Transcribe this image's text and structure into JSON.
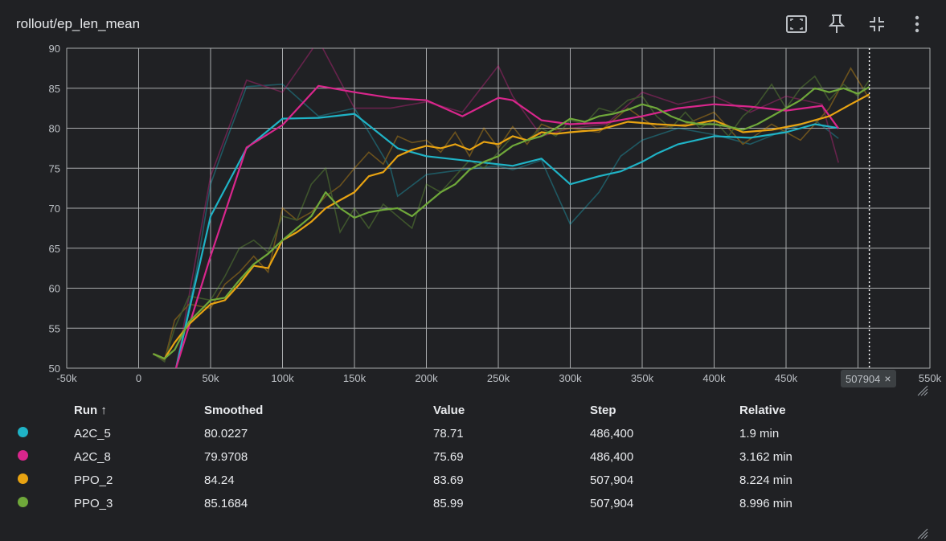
{
  "card": {
    "title": "rollout/ep_len_mean"
  },
  "toolbar": {
    "buttons": [
      {
        "name": "fit-domain-button",
        "icon": "fit-screen-icon"
      },
      {
        "name": "pin-button",
        "icon": "pin-icon"
      },
      {
        "name": "collapse-button",
        "icon": "collapse-icon"
      },
      {
        "name": "more-button",
        "icon": "more-vert-icon"
      }
    ]
  },
  "step_badge": {
    "label": "507904",
    "close": "×"
  },
  "table": {
    "headers": {
      "run": "Run ↑",
      "smoothed": "Smoothed",
      "value": "Value",
      "step": "Step",
      "relative": "Relative"
    },
    "rows": [
      {
        "run": "A2C_5",
        "smoothed": "80.0227",
        "value": "78.71",
        "step": "486,400",
        "relative": "1.9 min",
        "color": "#1fb3c6"
      },
      {
        "run": "A2C_8",
        "smoothed": "79.9708",
        "value": "75.69",
        "step": "486,400",
        "relative": "3.162 min",
        "color": "#d9268c"
      },
      {
        "run": "PPO_2",
        "smoothed": "84.24",
        "value": "83.69",
        "step": "507,904",
        "relative": "8.224 min",
        "color": "#e8a312"
      },
      {
        "run": "PPO_3",
        "smoothed": "85.1684",
        "value": "85.99",
        "step": "507,904",
        "relative": "8.996 min",
        "color": "#6fa83a"
      }
    ]
  },
  "chart_data": {
    "type": "line",
    "title": "rollout/ep_len_mean",
    "xlim": [
      -50000,
      550000
    ],
    "ylim": [
      50,
      90
    ],
    "x_ticks": [
      -50000,
      0,
      50000,
      100000,
      150000,
      200000,
      250000,
      300000,
      350000,
      400000,
      450000,
      500000,
      550000
    ],
    "x_tick_labels": [
      "-50k",
      "0",
      "50k",
      "100k",
      "150k",
      "200k",
      "250k",
      "300k",
      "350k",
      "400k",
      "450k",
      "500k",
      "550k"
    ],
    "y_ticks": [
      50,
      55,
      60,
      65,
      70,
      75,
      80,
      85,
      90
    ],
    "y_tick_labels": [
      "50",
      "55",
      "60",
      "65",
      "70",
      "75",
      "80",
      "85",
      "90"
    ],
    "grid": true,
    "cursor_step": 507904,
    "series": [
      {
        "name": "A2C_5",
        "color": "#1fb3c6",
        "smoothed": [
          [
            26000,
            50
          ],
          [
            50000,
            69
          ],
          [
            75000,
            77.5
          ],
          [
            100000,
            81.2
          ],
          [
            125000,
            81.3
          ],
          [
            150000,
            81.8
          ],
          [
            180000,
            77.5
          ],
          [
            200000,
            76.5
          ],
          [
            225000,
            76
          ],
          [
            250000,
            75.5
          ],
          [
            260000,
            75.3
          ],
          [
            280000,
            76.2
          ],
          [
            300000,
            73
          ],
          [
            320000,
            74
          ],
          [
            335000,
            74.6
          ],
          [
            350000,
            75.8
          ],
          [
            360000,
            76.8
          ],
          [
            375000,
            78
          ],
          [
            400000,
            79
          ],
          [
            425000,
            78.8
          ],
          [
            450000,
            79.5
          ],
          [
            470000,
            80.5
          ],
          [
            486400,
            80.0227
          ]
        ],
        "raw": [
          [
            26000,
            50
          ],
          [
            40000,
            62
          ],
          [
            50000,
            73
          ],
          [
            60000,
            78
          ],
          [
            75000,
            85.2
          ],
          [
            100000,
            85.5
          ],
          [
            125000,
            81.5
          ],
          [
            150000,
            82.5
          ],
          [
            175000,
            75
          ],
          [
            180000,
            71.5
          ],
          [
            200000,
            74.2
          ],
          [
            225000,
            74.8
          ],
          [
            250000,
            75.3
          ],
          [
            260000,
            74.8
          ],
          [
            280000,
            76
          ],
          [
            300000,
            68
          ],
          [
            320000,
            72
          ],
          [
            335000,
            76.5
          ],
          [
            350000,
            78.5
          ],
          [
            375000,
            80
          ],
          [
            400000,
            79.2
          ],
          [
            425000,
            78
          ],
          [
            450000,
            79.8
          ],
          [
            470000,
            81
          ],
          [
            486400,
            78.71
          ]
        ]
      },
      {
        "name": "A2C_8",
        "color": "#d9268c",
        "smoothed": [
          [
            26000,
            50
          ],
          [
            50000,
            64
          ],
          [
            75000,
            77.6
          ],
          [
            100000,
            80.4
          ],
          [
            125000,
            85.3
          ],
          [
            150000,
            84.5
          ],
          [
            175000,
            83.8
          ],
          [
            200000,
            83.5
          ],
          [
            225000,
            81.5
          ],
          [
            250000,
            83.8
          ],
          [
            260000,
            83.5
          ],
          [
            280000,
            81
          ],
          [
            300000,
            80.5
          ],
          [
            325000,
            80.7
          ],
          [
            350000,
            81.5
          ],
          [
            375000,
            82.5
          ],
          [
            400000,
            83
          ],
          [
            425000,
            82.7
          ],
          [
            450000,
            82.2
          ],
          [
            475000,
            82.8
          ],
          [
            486400,
            79.9708
          ]
        ],
        "raw": [
          [
            26000,
            50
          ],
          [
            50000,
            74
          ],
          [
            75000,
            86
          ],
          [
            100000,
            84.5
          ],
          [
            125000,
            91
          ],
          [
            150000,
            82.5
          ],
          [
            175000,
            82.5
          ],
          [
            200000,
            83.3
          ],
          [
            225000,
            82
          ],
          [
            250000,
            87.8
          ],
          [
            260000,
            84
          ],
          [
            280000,
            79
          ],
          [
            300000,
            80
          ],
          [
            325000,
            80.5
          ],
          [
            350000,
            84.5
          ],
          [
            375000,
            83
          ],
          [
            400000,
            84
          ],
          [
            425000,
            82
          ],
          [
            450000,
            84
          ],
          [
            475000,
            83
          ],
          [
            486400,
            75.69
          ]
        ]
      },
      {
        "name": "PPO_2",
        "color": "#e8a312",
        "smoothed": [
          [
            10000,
            51.8
          ],
          [
            18000,
            51.2
          ],
          [
            25000,
            53.2
          ],
          [
            35000,
            55.5
          ],
          [
            50000,
            58
          ],
          [
            60000,
            58.5
          ],
          [
            70000,
            60.5
          ],
          [
            80000,
            62.8
          ],
          [
            90000,
            62.5
          ],
          [
            100000,
            66
          ],
          [
            110000,
            67
          ],
          [
            120000,
            68.3
          ],
          [
            130000,
            70
          ],
          [
            140000,
            71
          ],
          [
            150000,
            72
          ],
          [
            160000,
            74
          ],
          [
            170000,
            74.5
          ],
          [
            180000,
            76.5
          ],
          [
            190000,
            77.3
          ],
          [
            200000,
            77.8
          ],
          [
            210000,
            77.5
          ],
          [
            220000,
            78
          ],
          [
            230000,
            77.3
          ],
          [
            240000,
            78.3
          ],
          [
            250000,
            78
          ],
          [
            260000,
            79
          ],
          [
            270000,
            78.5
          ],
          [
            280000,
            79.5
          ],
          [
            290000,
            79.3
          ],
          [
            300000,
            79.5
          ],
          [
            320000,
            79.8
          ],
          [
            340000,
            80.8
          ],
          [
            360000,
            80.5
          ],
          [
            380000,
            80.3
          ],
          [
            400000,
            81
          ],
          [
            420000,
            79.5
          ],
          [
            440000,
            79.8
          ],
          [
            460000,
            80.5
          ],
          [
            480000,
            81.5
          ],
          [
            495000,
            83
          ],
          [
            507904,
            84.24
          ]
        ],
        "raw": [
          [
            10000,
            51.8
          ],
          [
            18000,
            51
          ],
          [
            25000,
            56
          ],
          [
            35000,
            58
          ],
          [
            50000,
            57.5
          ],
          [
            60000,
            60.5
          ],
          [
            70000,
            62
          ],
          [
            80000,
            64
          ],
          [
            90000,
            62
          ],
          [
            100000,
            70
          ],
          [
            110000,
            68.5
          ],
          [
            120000,
            69.5
          ],
          [
            130000,
            71.5
          ],
          [
            140000,
            72.8
          ],
          [
            150000,
            75
          ],
          [
            160000,
            77
          ],
          [
            170000,
            75.5
          ],
          [
            180000,
            79
          ],
          [
            190000,
            78.2
          ],
          [
            200000,
            78.5
          ],
          [
            210000,
            77
          ],
          [
            220000,
            79.5
          ],
          [
            230000,
            76.5
          ],
          [
            240000,
            80
          ],
          [
            250000,
            77.5
          ],
          [
            260000,
            80.2
          ],
          [
            270000,
            78
          ],
          [
            280000,
            80.5
          ],
          [
            290000,
            79.8
          ],
          [
            300000,
            80
          ],
          [
            320000,
            79.5
          ],
          [
            340000,
            82.5
          ],
          [
            360000,
            80
          ],
          [
            380000,
            80.5
          ],
          [
            400000,
            82
          ],
          [
            420000,
            78
          ],
          [
            440000,
            80.5
          ],
          [
            460000,
            78.5
          ],
          [
            480000,
            82.5
          ],
          [
            495000,
            87.5
          ],
          [
            507904,
            83.69
          ]
        ]
      },
      {
        "name": "PPO_3",
        "color": "#6fa83a",
        "smoothed": [
          [
            10000,
            51.8
          ],
          [
            18000,
            51.2
          ],
          [
            25000,
            52.3
          ],
          [
            35000,
            55.8
          ],
          [
            50000,
            58.5
          ],
          [
            60000,
            58.8
          ],
          [
            70000,
            61
          ],
          [
            80000,
            63
          ],
          [
            90000,
            64.3
          ],
          [
            100000,
            66
          ],
          [
            110000,
            67.5
          ],
          [
            120000,
            69
          ],
          [
            130000,
            72
          ],
          [
            140000,
            70
          ],
          [
            150000,
            68.8
          ],
          [
            160000,
            69.5
          ],
          [
            170000,
            69.8
          ],
          [
            180000,
            70
          ],
          [
            190000,
            69
          ],
          [
            200000,
            70.5
          ],
          [
            210000,
            72
          ],
          [
            220000,
            73
          ],
          [
            230000,
            74.8
          ],
          [
            240000,
            75.8
          ],
          [
            250000,
            76.5
          ],
          [
            260000,
            77.8
          ],
          [
            270000,
            78.5
          ],
          [
            280000,
            79
          ],
          [
            290000,
            80
          ],
          [
            300000,
            81.2
          ],
          [
            310000,
            80.8
          ],
          [
            320000,
            81.5
          ],
          [
            330000,
            81.8
          ],
          [
            340000,
            82.3
          ],
          [
            350000,
            83
          ],
          [
            360000,
            82.5
          ],
          [
            370000,
            81.5
          ],
          [
            380000,
            80.8
          ],
          [
            390000,
            80.5
          ],
          [
            400000,
            80.5
          ],
          [
            410000,
            80.2
          ],
          [
            420000,
            79.8
          ],
          [
            430000,
            80.5
          ],
          [
            440000,
            81.5
          ],
          [
            450000,
            82.5
          ],
          [
            460000,
            83.5
          ],
          [
            470000,
            85
          ],
          [
            480000,
            84.5
          ],
          [
            490000,
            85
          ],
          [
            500000,
            84.3
          ],
          [
            507904,
            85.1684
          ]
        ],
        "raw": [
          [
            10000,
            51.8
          ],
          [
            18000,
            50.8
          ],
          [
            25000,
            55
          ],
          [
            35000,
            59
          ],
          [
            50000,
            58.5
          ],
          [
            60000,
            61.5
          ],
          [
            70000,
            65
          ],
          [
            80000,
            66
          ],
          [
            90000,
            64.5
          ],
          [
            100000,
            69
          ],
          [
            110000,
            68.5
          ],
          [
            120000,
            73
          ],
          [
            130000,
            75
          ],
          [
            140000,
            67
          ],
          [
            150000,
            70
          ],
          [
            160000,
            67.5
          ],
          [
            170000,
            70.5
          ],
          [
            180000,
            69
          ],
          [
            190000,
            67.5
          ],
          [
            200000,
            73
          ],
          [
            210000,
            72
          ],
          [
            220000,
            74
          ],
          [
            230000,
            76
          ],
          [
            240000,
            75
          ],
          [
            250000,
            77
          ],
          [
            260000,
            79
          ],
          [
            270000,
            78.5
          ],
          [
            280000,
            80
          ],
          [
            290000,
            79
          ],
          [
            300000,
            81
          ],
          [
            310000,
            80.5
          ],
          [
            320000,
            82.5
          ],
          [
            330000,
            82
          ],
          [
            340000,
            83.5
          ],
          [
            350000,
            84
          ],
          [
            360000,
            81.5
          ],
          [
            370000,
            80
          ],
          [
            380000,
            82
          ],
          [
            390000,
            80
          ],
          [
            400000,
            81
          ],
          [
            410000,
            79
          ],
          [
            420000,
            81.5
          ],
          [
            430000,
            83
          ],
          [
            440000,
            85.5
          ],
          [
            450000,
            82.5
          ],
          [
            460000,
            85
          ],
          [
            470000,
            86.5
          ],
          [
            480000,
            83.5
          ],
          [
            490000,
            85.5
          ],
          [
            500000,
            84
          ],
          [
            507904,
            85.99
          ]
        ]
      }
    ]
  }
}
